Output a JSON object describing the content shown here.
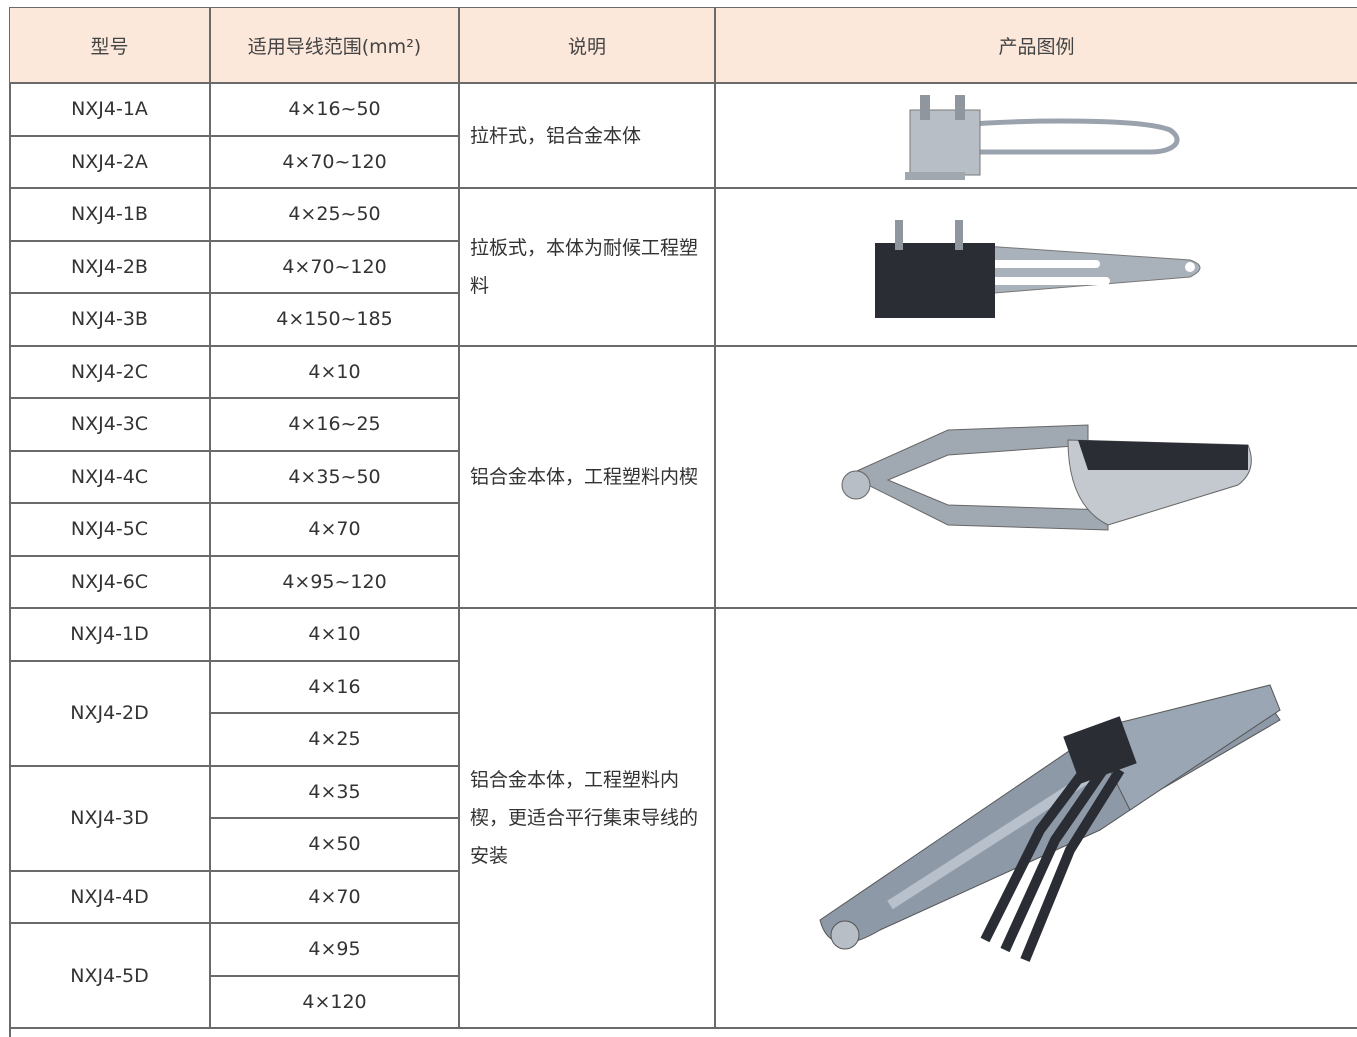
{
  "table": {
    "header": [
      "型号",
      "适用导线范围(mm²)",
      "说明",
      "产品图例"
    ],
    "groups": [
      {
        "description": "拉杆式，铝合金本体",
        "models": [
          {
            "model": "NXJ4-1A",
            "ranges": [
              "4×16~50"
            ]
          },
          {
            "model": "NXJ4-2A",
            "ranges": [
              "4×70~120"
            ]
          }
        ]
      },
      {
        "description": "拉板式，本体为耐候工程塑料",
        "models": [
          {
            "model": "NXJ4-1B",
            "ranges": [
              "4×25~50"
            ]
          },
          {
            "model": "NXJ4-2B",
            "ranges": [
              "4×70~120"
            ]
          },
          {
            "model": "NXJ4-3B",
            "ranges": [
              "4×150~185"
            ]
          }
        ]
      },
      {
        "description": "铝合金本体，工程塑料内楔",
        "models": [
          {
            "model": "NXJ4-2C",
            "ranges": [
              "4×10"
            ]
          },
          {
            "model": "NXJ4-3C",
            "ranges": [
              "4×16~25"
            ]
          },
          {
            "model": "NXJ4-4C",
            "ranges": [
              "4×35~50"
            ]
          },
          {
            "model": "NXJ4-5C",
            "ranges": [
              "4×70"
            ]
          },
          {
            "model": "NXJ4-6C",
            "ranges": [
              "4×95~120"
            ]
          }
        ]
      },
      {
        "description": "铝合金本体，工程塑料内楔，更适合平行集束导线的安装",
        "models": [
          {
            "model": "NXJ4-1D",
            "ranges": [
              "4×10"
            ]
          },
          {
            "model": "NXJ4-2D",
            "ranges": [
              "4×16",
              "4×25"
            ]
          },
          {
            "model": "NXJ4-3D",
            "ranges": [
              "4×35",
              "4×50"
            ]
          },
          {
            "model": "NXJ4-4D",
            "ranges": [
              "4×70"
            ]
          },
          {
            "model": "NXJ4-5D",
            "ranges": [
              "4×95",
              "4×120"
            ]
          }
        ]
      }
    ]
  }
}
